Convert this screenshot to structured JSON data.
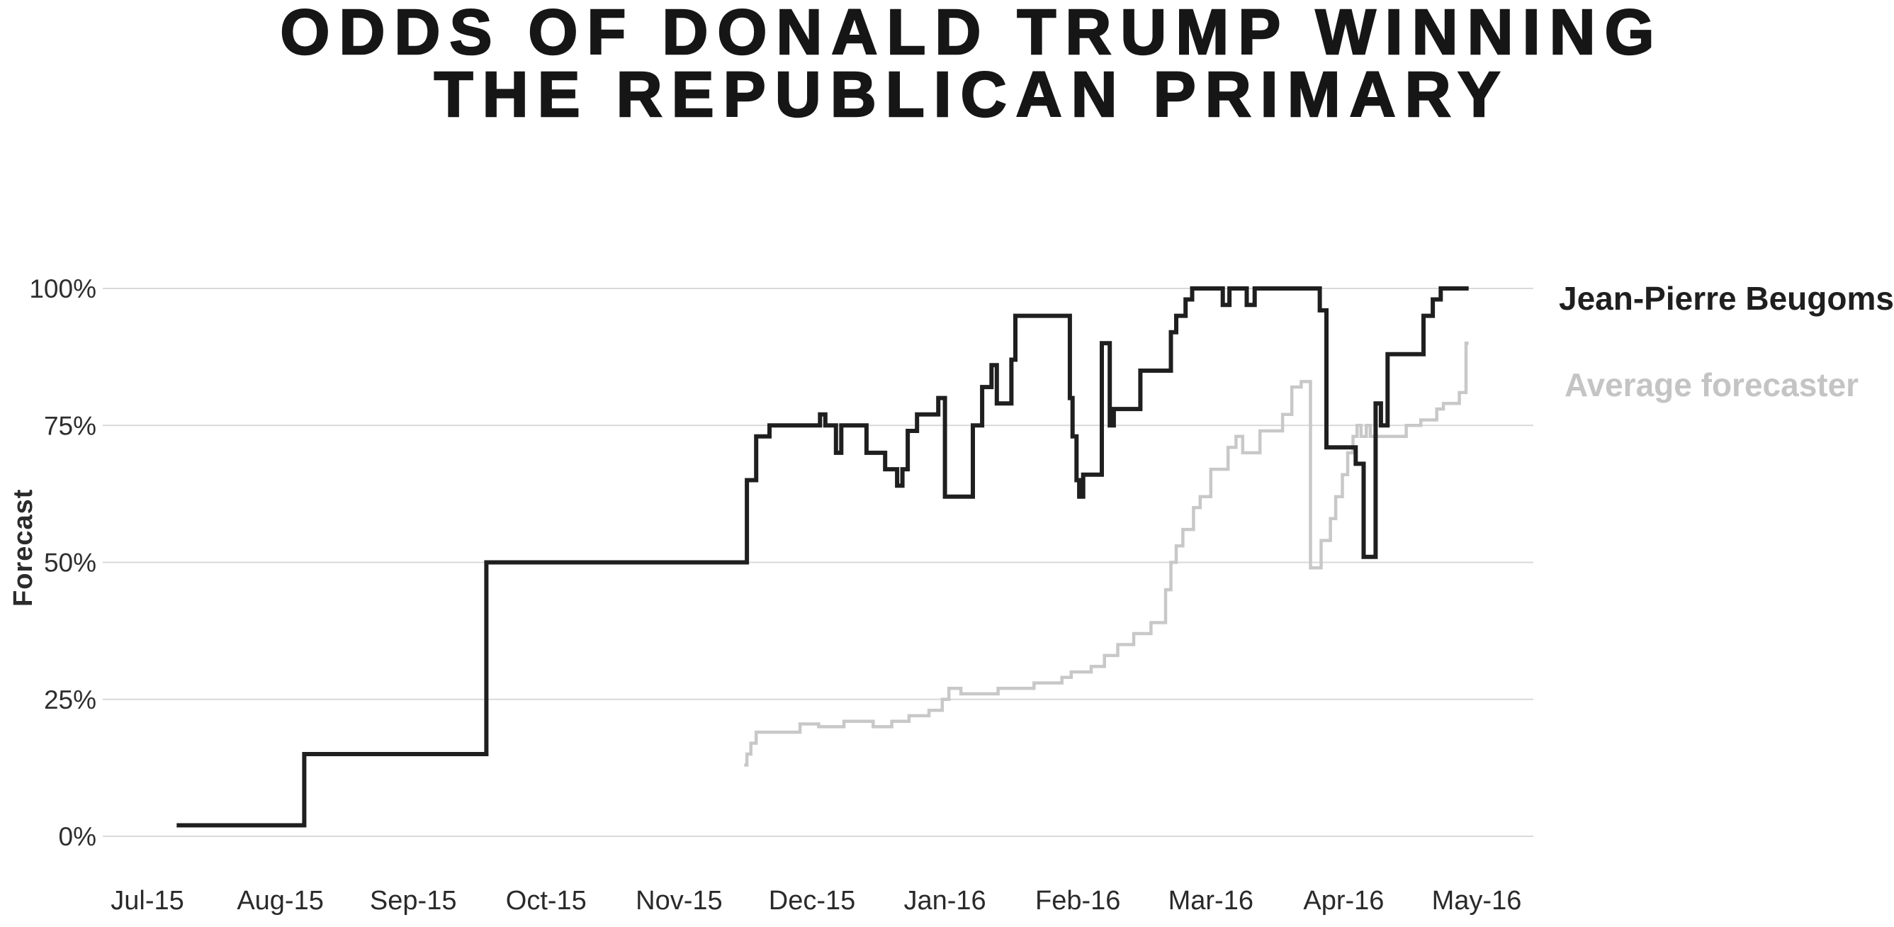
{
  "page": {
    "background": "#ffffff"
  },
  "chart_data": {
    "type": "line",
    "subtype": "step-after",
    "title_line1": "ODDS OF DONALD TRUMP WINNING",
    "title_line2": "THE REPUBLICAN PRIMARY",
    "ylabel": "Forecast",
    "xlabel": "",
    "grid": "horizontal-only",
    "legend_position": "right-of-plot",
    "ylim": [
      0,
      100
    ],
    "x_unit": "months-after-Jul-2015-tick",
    "x_tick_labels": [
      "Jul-15",
      "Aug-15",
      "Sep-15",
      "Oct-15",
      "Nov-15",
      "Dec-15",
      "Jan-16",
      "Feb-16",
      "Mar-16",
      "Apr-16",
      "May-16"
    ],
    "y_ticks": [
      {
        "label": "0%",
        "value": 0
      },
      {
        "label": "25%",
        "value": 25
      },
      {
        "label": "50%",
        "value": 50
      },
      {
        "label": "75%",
        "value": 75
      },
      {
        "label": "100%",
        "value": 100
      }
    ],
    "colors": {
      "series1": "#1f1f1f",
      "series2": "#c8c8c8",
      "gridline": "#d9d9d9",
      "title_text": "#161616",
      "tick_text": "#2a2a2a"
    },
    "series": [
      {
        "name": "Jean-Pierre Beugoms",
        "color": "#1f1f1f",
        "stroke_width": 6,
        "end_m": 9.94,
        "points": [
          [
            0.22,
            2
          ],
          [
            1.18,
            15
          ],
          [
            2.55,
            50
          ],
          [
            4.51,
            65
          ],
          [
            4.58,
            73
          ],
          [
            4.68,
            75
          ],
          [
            5.06,
            77
          ],
          [
            5.1,
            75
          ],
          [
            5.18,
            70
          ],
          [
            5.22,
            75
          ],
          [
            5.41,
            70
          ],
          [
            5.55,
            67
          ],
          [
            5.64,
            64
          ],
          [
            5.68,
            67
          ],
          [
            5.72,
            74
          ],
          [
            5.79,
            77
          ],
          [
            5.95,
            80
          ],
          [
            6.0,
            62
          ],
          [
            6.21,
            75
          ],
          [
            6.28,
            82
          ],
          [
            6.35,
            86
          ],
          [
            6.39,
            79
          ],
          [
            6.5,
            87
          ],
          [
            6.53,
            95
          ],
          [
            6.94,
            80
          ],
          [
            6.96,
            73
          ],
          [
            6.99,
            65
          ],
          [
            7.01,
            62
          ],
          [
            7.04,
            66
          ],
          [
            7.18,
            90
          ],
          [
            7.24,
            75
          ],
          [
            7.27,
            78
          ],
          [
            7.47,
            85
          ],
          [
            7.7,
            92
          ],
          [
            7.74,
            95
          ],
          [
            7.81,
            98
          ],
          [
            7.86,
            100
          ],
          [
            8.09,
            97
          ],
          [
            8.14,
            100
          ],
          [
            8.27,
            97
          ],
          [
            8.33,
            100
          ],
          [
            8.82,
            96
          ],
          [
            8.87,
            71
          ],
          [
            9.09,
            68
          ],
          [
            9.15,
            51
          ],
          [
            9.24,
            79
          ],
          [
            9.28,
            75
          ],
          [
            9.33,
            88
          ],
          [
            9.6,
            95
          ],
          [
            9.67,
            98
          ],
          [
            9.73,
            100
          ]
        ]
      },
      {
        "name": "Average forecaster",
        "color": "#c8c8c8",
        "stroke_width": 4.5,
        "end_m": 9.94,
        "points": [
          [
            4.49,
            13
          ],
          [
            4.51,
            15
          ],
          [
            4.54,
            17
          ],
          [
            4.58,
            19
          ],
          [
            4.91,
            20.5
          ],
          [
            5.05,
            20
          ],
          [
            5.24,
            21
          ],
          [
            5.46,
            20
          ],
          [
            5.6,
            21
          ],
          [
            5.73,
            22
          ],
          [
            5.88,
            23
          ],
          [
            5.98,
            25
          ],
          [
            6.03,
            27
          ],
          [
            6.12,
            26
          ],
          [
            6.4,
            27
          ],
          [
            6.67,
            28
          ],
          [
            6.88,
            29
          ],
          [
            6.95,
            30
          ],
          [
            7.1,
            31
          ],
          [
            7.2,
            33
          ],
          [
            7.3,
            35
          ],
          [
            7.42,
            37
          ],
          [
            7.55,
            39
          ],
          [
            7.66,
            45
          ],
          [
            7.7,
            50
          ],
          [
            7.74,
            53
          ],
          [
            7.79,
            56
          ],
          [
            7.87,
            60
          ],
          [
            7.92,
            62
          ],
          [
            8.0,
            67
          ],
          [
            8.13,
            71
          ],
          [
            8.19,
            73
          ],
          [
            8.24,
            70
          ],
          [
            8.37,
            74
          ],
          [
            8.54,
            77
          ],
          [
            8.61,
            82
          ],
          [
            8.68,
            83
          ],
          [
            8.75,
            49
          ],
          [
            8.83,
            54
          ],
          [
            8.9,
            58
          ],
          [
            8.94,
            62
          ],
          [
            8.99,
            66
          ],
          [
            9.03,
            70
          ],
          [
            9.07,
            73
          ],
          [
            9.1,
            75
          ],
          [
            9.13,
            73
          ],
          [
            9.17,
            75
          ],
          [
            9.2,
            73
          ],
          [
            9.47,
            75
          ],
          [
            9.58,
            76
          ],
          [
            9.7,
            78
          ],
          [
            9.75,
            79
          ],
          [
            9.87,
            81
          ],
          [
            9.92,
            90
          ]
        ]
      }
    ]
  }
}
